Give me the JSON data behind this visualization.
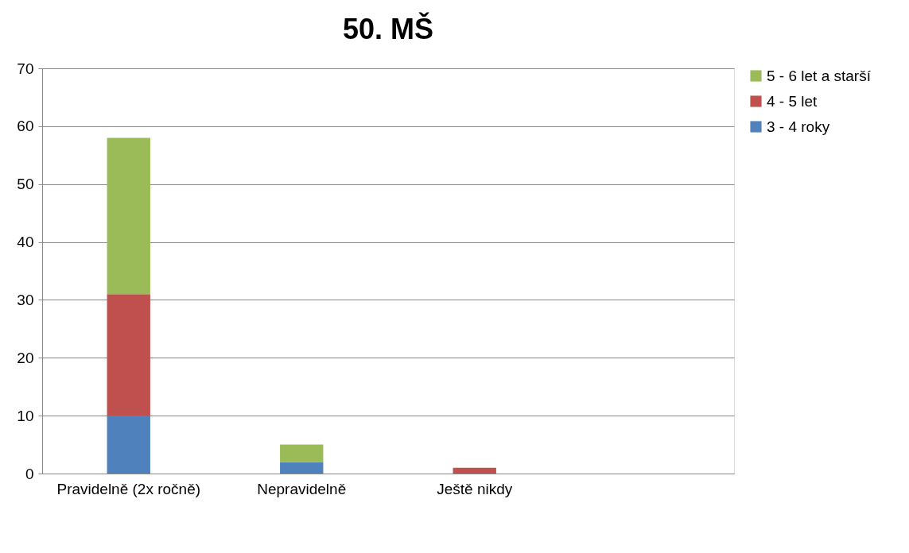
{
  "chart_data": {
    "type": "bar",
    "title": "50. MŠ",
    "stacked": true,
    "categories": [
      "Pravidelně (2x ročně)",
      "Nepravidelně",
      "Ještě nikdy",
      null
    ],
    "series": [
      {
        "name": "3 - 4 roky",
        "color": "#4f81bd",
        "values": [
          10,
          2,
          0,
          null
        ]
      },
      {
        "name": "4 - 5 let",
        "color": "#c0504d",
        "values": [
          21,
          0,
          1,
          null
        ]
      },
      {
        "name": "5 - 6 let a starší",
        "color": "#9bbb59",
        "values": [
          27,
          3,
          0,
          null
        ]
      }
    ],
    "ylim": [
      0,
      70
    ],
    "yticks": [
      0,
      10,
      20,
      30,
      40,
      50,
      60,
      70
    ],
    "grid": "y",
    "legend": "right"
  }
}
